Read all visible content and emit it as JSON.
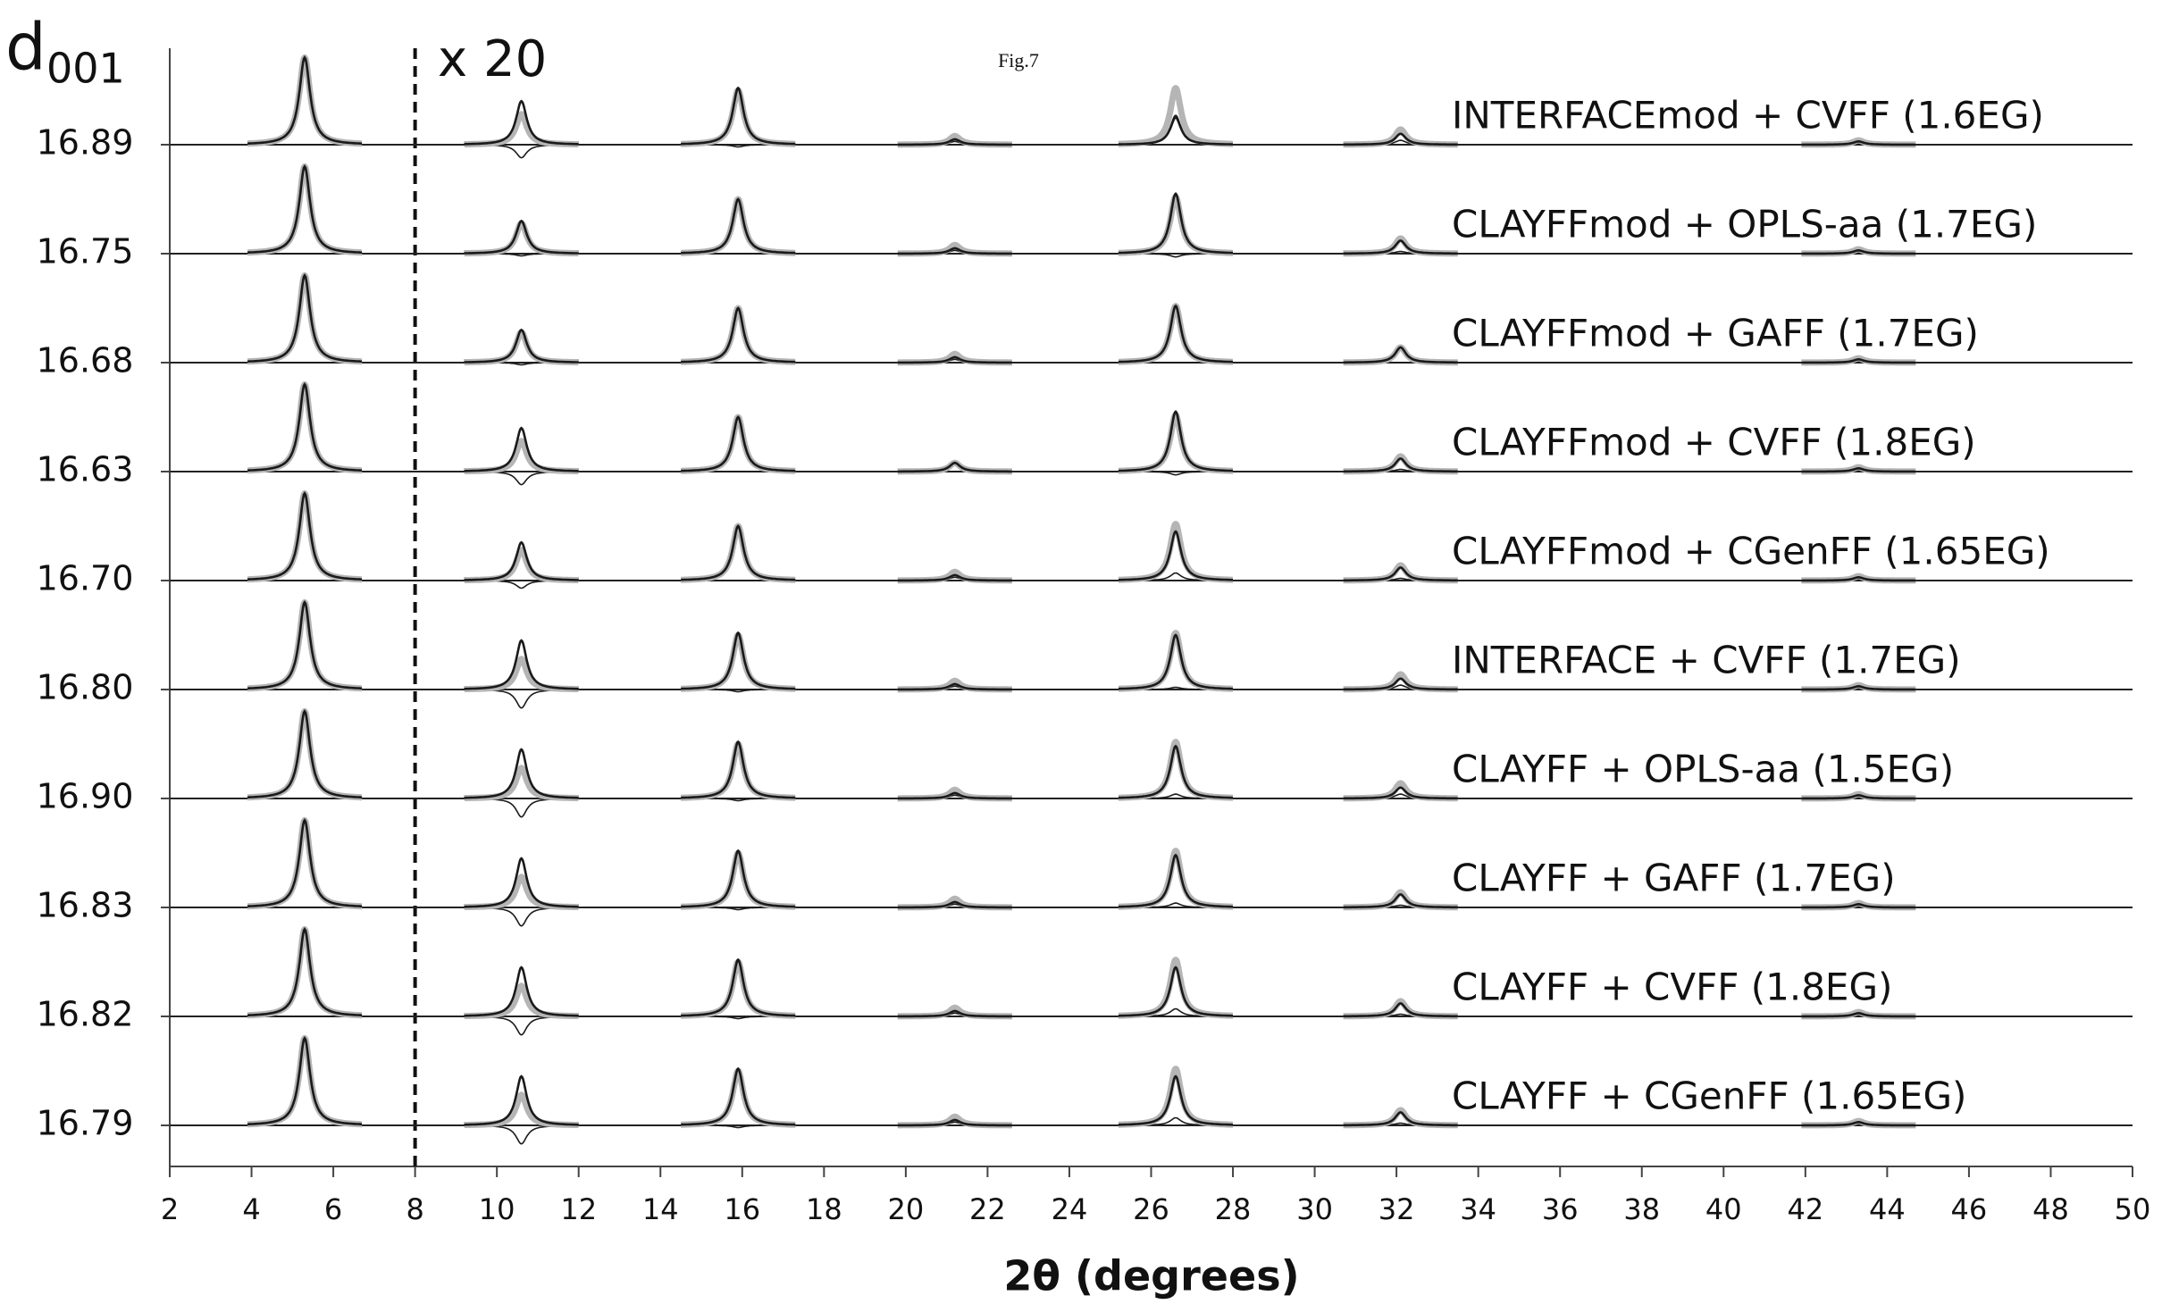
{
  "chart_data": {
    "type": "xrd-stack",
    "annotation": "Fig.7",
    "y_header": "d",
    "y_header_sub": "001",
    "scale_note": "x 20",
    "scale_break": 8,
    "xlabel": "2θ (degrees)",
    "xlim": [
      2,
      50
    ],
    "xticks": [
      2,
      4,
      6,
      8,
      10,
      12,
      14,
      16,
      18,
      20,
      22,
      24,
      26,
      28,
      30,
      32,
      34,
      36,
      38,
      40,
      42,
      44,
      46,
      48,
      50
    ],
    "peaks": [
      5.3,
      10.6,
      15.9,
      21.2,
      26.6,
      32.1,
      43.3
    ],
    "experimental": {
      "color": "#b5b5b5",
      "values": [
        80,
        28,
        50,
        8,
        52,
        14,
        4
      ]
    },
    "sim_color": "#1a1a1a",
    "series": [
      {
        "name": "INTERFACEmod + CVFF (1.6EG)",
        "d_spacing": "16.89",
        "values": [
          80,
          40,
          52,
          5,
          25,
          10,
          3
        ]
      },
      {
        "name": "CLAYFFmod + OPLS-aa (1.7EG)",
        "d_spacing": "16.75",
        "values": [
          80,
          30,
          50,
          5,
          55,
          12,
          3
        ]
      },
      {
        "name": "CLAYFFmod + GAFF (1.7EG)",
        "d_spacing": "16.68",
        "values": [
          80,
          30,
          50,
          5,
          52,
          14,
          3
        ]
      },
      {
        "name": "CLAYFFmod + CVFF (1.8EG)",
        "d_spacing": "16.63",
        "values": [
          80,
          40,
          50,
          8,
          55,
          12,
          3
        ]
      },
      {
        "name": "CLAYFFmod + CGenFF (1.65EG)",
        "d_spacing": "16.70",
        "values": [
          80,
          35,
          50,
          5,
          45,
          12,
          3
        ]
      },
      {
        "name": "INTERFACE + CVFF (1.7EG)",
        "d_spacing": "16.80",
        "values": [
          80,
          45,
          52,
          5,
          50,
          10,
          3
        ]
      },
      {
        "name": "CLAYFF + OPLS-aa (1.5EG)",
        "d_spacing": "16.90",
        "values": [
          80,
          45,
          52,
          5,
          48,
          10,
          3
        ]
      },
      {
        "name": "CLAYFF + GAFF (1.7EG)",
        "d_spacing": "16.83",
        "values": [
          80,
          45,
          52,
          5,
          48,
          12,
          3
        ]
      },
      {
        "name": "CLAYFF + CVFF (1.8EG)",
        "d_spacing": "16.82",
        "values": [
          80,
          45,
          52,
          5,
          45,
          12,
          3
        ]
      },
      {
        "name": "CLAYFF + CGenFF (1.65EG)",
        "d_spacing": "16.79",
        "values": [
          80,
          45,
          52,
          5,
          45,
          12,
          3
        ]
      }
    ]
  }
}
